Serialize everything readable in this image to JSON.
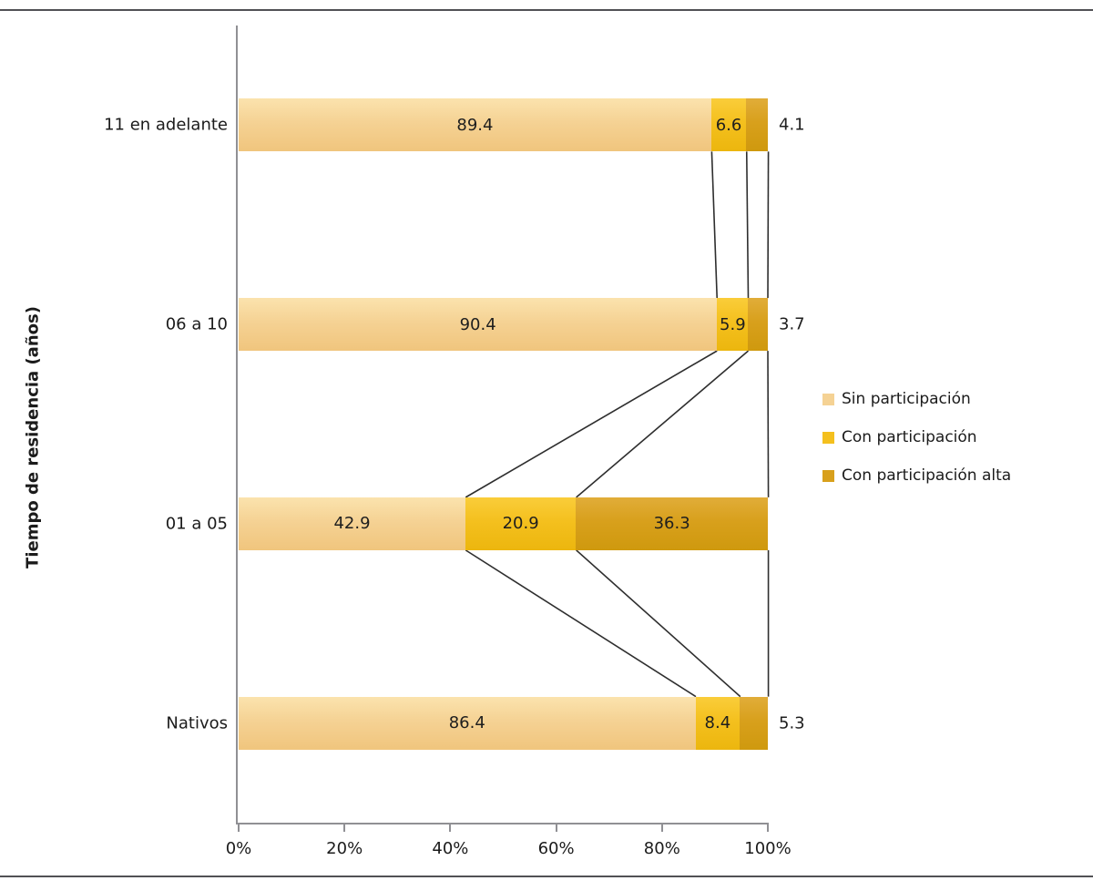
{
  "chart_data": {
    "type": "bar",
    "orientation": "horizontal",
    "stacked": "100-percent",
    "title": "",
    "ylabel": "Tiempo de residencia (años)",
    "xlabel": "",
    "categories": [
      "11 en adelante",
      "06 a 10",
      "01 a 05",
      "Nativos"
    ],
    "series": [
      {
        "name": "Sin participación",
        "color": "#F5D294",
        "gradient_top": "#FBE3AE",
        "gradient_bottom": "#F0C57D",
        "values": [
          89.4,
          90.4,
          42.9,
          86.4
        ]
      },
      {
        "name": "Con participación",
        "color": "#F4C01E",
        "gradient_top": "#FACD3A",
        "gradient_bottom": "#ECB60E",
        "values": [
          6.6,
          5.9,
          20.9,
          8.4
        ]
      },
      {
        "name": "Con participación alta",
        "color": "#D8A01C",
        "gradient_top": "#E1AD39",
        "gradient_bottom": "#CF990E",
        "values": [
          4.1,
          3.7,
          36.3,
          5.3
        ]
      }
    ],
    "xticks": [
      "0%",
      "20%",
      "40%",
      "60%",
      "80%",
      "100%"
    ],
    "xlim": [
      0,
      100
    ],
    "grid": false,
    "legend_position": "right",
    "connector_lines": true,
    "outside_label_rule": "last series labels below 10 are placed right of bar"
  },
  "style": {
    "axis_color": "#909094",
    "frame_color": "#515155",
    "connector_color": "#2e2e2e",
    "text_color": "#1b1b1b",
    "background": "#ffffff"
  }
}
